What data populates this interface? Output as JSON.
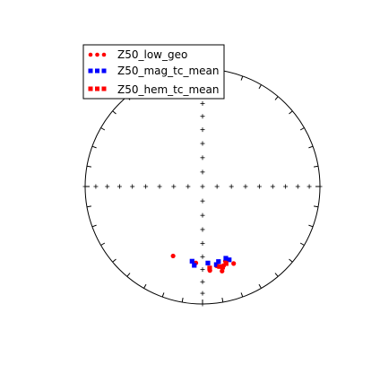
{
  "chart_data": {
    "type": "scatter",
    "projection": "equal-area stereonet",
    "title": "",
    "xlabel": "",
    "ylabel": "",
    "grid": false,
    "legend_placement": "top-left",
    "colors": {
      "low_geo": "#ff0000",
      "mag": "#0000ff",
      "hem": "#ff0000",
      "frame": "#000000"
    },
    "series": [
      {
        "name": "Z50_low_geo",
        "marker": "circle",
        "color": "#ff0000",
        "points": [
          {
            "dec": 185,
            "inc": 35
          },
          {
            "dec": 167,
            "inc": 27
          },
          {
            "dec": 158,
            "inc": 30
          },
          {
            "dec": 163,
            "inc": 34
          },
          {
            "dec": 170,
            "inc": 32
          },
          {
            "dec": 203,
            "inc": 36
          },
          {
            "dec": 175,
            "inc": 29
          },
          {
            "dec": 165,
            "inc": 31
          }
        ]
      },
      {
        "name": "Z50_mag_tc_mean",
        "marker": "square",
        "color": "#0000ff",
        "points": [
          {
            "dec": 188,
            "inc": 36
          },
          {
            "dec": 170,
            "inc": 33
          },
          {
            "dec": 162,
            "inc": 36
          },
          {
            "dec": 168,
            "inc": 35
          },
          {
            "dec": 186,
            "inc": 33
          },
          {
            "dec": 176,
            "inc": 35
          },
          {
            "dec": 160,
            "inc": 34
          }
        ]
      },
      {
        "name": "Z50_hem_tc_mean",
        "marker": "square",
        "color": "#ff0000",
        "points": [
          {
            "dec": 166,
            "inc": 30
          },
          {
            "dec": 175,
            "inc": 31
          },
          {
            "dec": 168,
            "inc": 31
          },
          {
            "dec": 163,
            "inc": 32
          }
        ]
      }
    ]
  }
}
